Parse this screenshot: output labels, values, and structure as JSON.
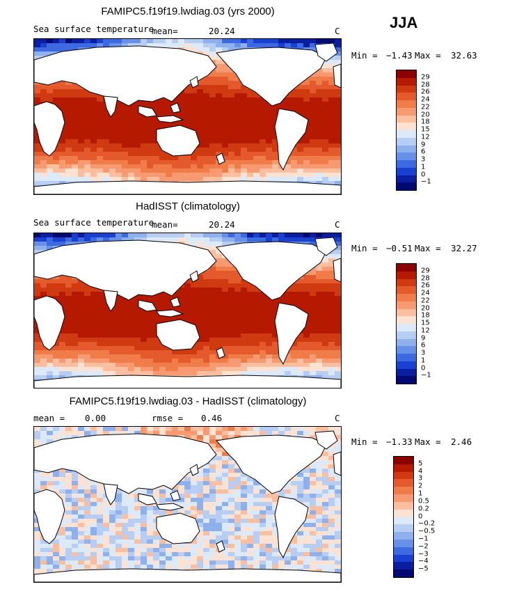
{
  "season": "JJA",
  "units": "C",
  "chart_data": [
    {
      "type": "heatmap",
      "title": "FAMIPC5.f19f19.lwdiag.03 (yrs 2000)",
      "subtitle": "Sea surface temperature",
      "mean_label": "mean=",
      "mean": "20.24",
      "min_label": "Min =",
      "min": "−1.43",
      "max_label": "Max =",
      "max": "32.63",
      "units": "C",
      "colorbar": {
        "levels": [
          "29",
          "28",
          "26",
          "24",
          "22",
          "20",
          "18",
          "15",
          "12",
          "9",
          "6",
          "3",
          "1",
          "0",
          "−1"
        ],
        "colors": [
          "#8b0000",
          "#b51a00",
          "#d03a10",
          "#e55a2c",
          "#f07c4a",
          "#f79a72",
          "#fbbfa0",
          "#fce2d2",
          "#dce9f8",
          "#b7cdf2",
          "#8eb0ec",
          "#6791e8",
          "#3d6ae0",
          "#1940d0",
          "#0a1e9f",
          "#000a70"
        ]
      }
    },
    {
      "type": "heatmap",
      "title": "HadISST (climatology)",
      "subtitle": "Sea surface temperature",
      "mean_label": "mean=",
      "mean": "20.24",
      "min_label": "Min =",
      "min": "−0.51",
      "max_label": "Max =",
      "max": "32.27",
      "units": "C",
      "colorbar": {
        "levels": [
          "29",
          "28",
          "26",
          "24",
          "22",
          "20",
          "18",
          "15",
          "12",
          "9",
          "6",
          "3",
          "1",
          "0",
          "−1"
        ],
        "colors": [
          "#8b0000",
          "#b51a00",
          "#d03a10",
          "#e55a2c",
          "#f07c4a",
          "#f79a72",
          "#fbbfa0",
          "#fce2d2",
          "#dce9f8",
          "#b7cdf2",
          "#8eb0ec",
          "#6791e8",
          "#3d6ae0",
          "#1940d0",
          "#0a1e9f",
          "#000a70"
        ]
      }
    },
    {
      "type": "heatmap",
      "title": "FAMIPC5.f19f19.lwdiag.03 - HadISST (climatology)",
      "mean_label": "mean =",
      "mean": "0.00",
      "rmse_label": "rmse =",
      "rmse": "0.46",
      "min_label": "Min =",
      "min": "−1.33",
      "max_label": "Max =",
      "max": "2.46",
      "units": "C",
      "colorbar": {
        "levels": [
          "5",
          "4",
          "3",
          "2",
          "1",
          "0.5",
          "0.2",
          "0",
          "−0.2",
          "−0.5",
          "−1",
          "−2",
          "−3",
          "−4",
          "−5"
        ],
        "colors": [
          "#8b0000",
          "#b51a00",
          "#d03a10",
          "#e55a2c",
          "#f07c4a",
          "#f79a72",
          "#fbbfa0",
          "#fce2d2",
          "#dce9f8",
          "#b7cdf2",
          "#8eb0ec",
          "#6791e8",
          "#3d6ae0",
          "#1940d0",
          "#0a1e9f",
          "#000a70"
        ]
      }
    }
  ]
}
